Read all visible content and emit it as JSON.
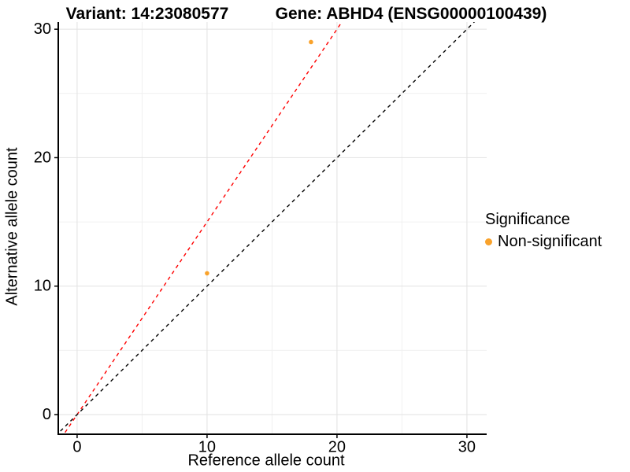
{
  "titles": {
    "left": "Variant: 14:23080577",
    "right": "Gene: ABHD4 (ENSG00000100439)"
  },
  "chart_data": {
    "type": "scatter",
    "xlabel": "Reference allele count",
    "ylabel": "Alternative allele count",
    "xlim": [
      -1.45,
      31.52
    ],
    "ylim": [
      -1.53,
      30.56
    ],
    "xticks": [
      0,
      10,
      20,
      30
    ],
    "yticks": [
      0,
      10,
      20,
      30
    ],
    "minor_ticks_x": [
      5,
      15,
      25
    ],
    "minor_ticks_y": [
      5,
      15,
      25
    ],
    "grid": true,
    "legend_position": "right",
    "points": [
      {
        "x": 10,
        "y": 11,
        "series": "Non-significant"
      },
      {
        "x": 18,
        "y": 29,
        "series": "Non-significant"
      }
    ],
    "lines": [
      {
        "name": "ratio-line",
        "slope": 1.5,
        "intercept": 0,
        "color": "#FF0000",
        "style": "dashed"
      },
      {
        "name": "identity-line",
        "slope": 1.0,
        "intercept": 0,
        "color": "#000000",
        "style": "dashed"
      }
    ],
    "point_color": "#F9A22B",
    "colors": {
      "grid_major": "#E2E2E2",
      "grid_minor": "#F0F0F0",
      "axis_line": "#000000",
      "tick_text": "#000000"
    },
    "legend": {
      "title": "Significance",
      "items": [
        {
          "label": "Non-significant",
          "color": "#F9A22B"
        }
      ]
    }
  }
}
